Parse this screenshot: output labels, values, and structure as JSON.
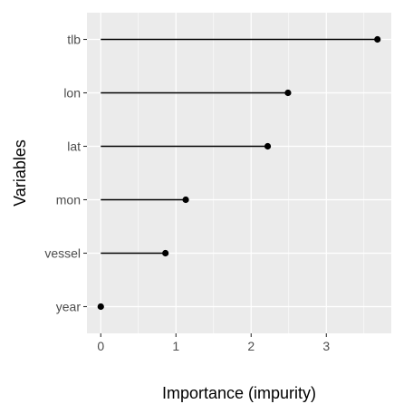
{
  "chart_data": {
    "type": "lollipop",
    "orientation": "horizontal",
    "xlabel": "Importance (impurity)",
    "ylabel": "Variables",
    "categories": [
      "tlb",
      "lon",
      "lat",
      "mon",
      "vessel",
      "year"
    ],
    "values": [
      3.68,
      2.49,
      2.22,
      1.13,
      0.86,
      0.0
    ],
    "xlim": [
      -0.184,
      3.864
    ],
    "xticks": [
      0,
      1,
      2,
      3
    ],
    "grid": true,
    "legend": "none",
    "colors": {
      "panel": "#ebebeb",
      "grid": "#ffffff",
      "marks": "#000000",
      "ticks": "#333333",
      "tick_label": "#4d4d4d"
    }
  }
}
